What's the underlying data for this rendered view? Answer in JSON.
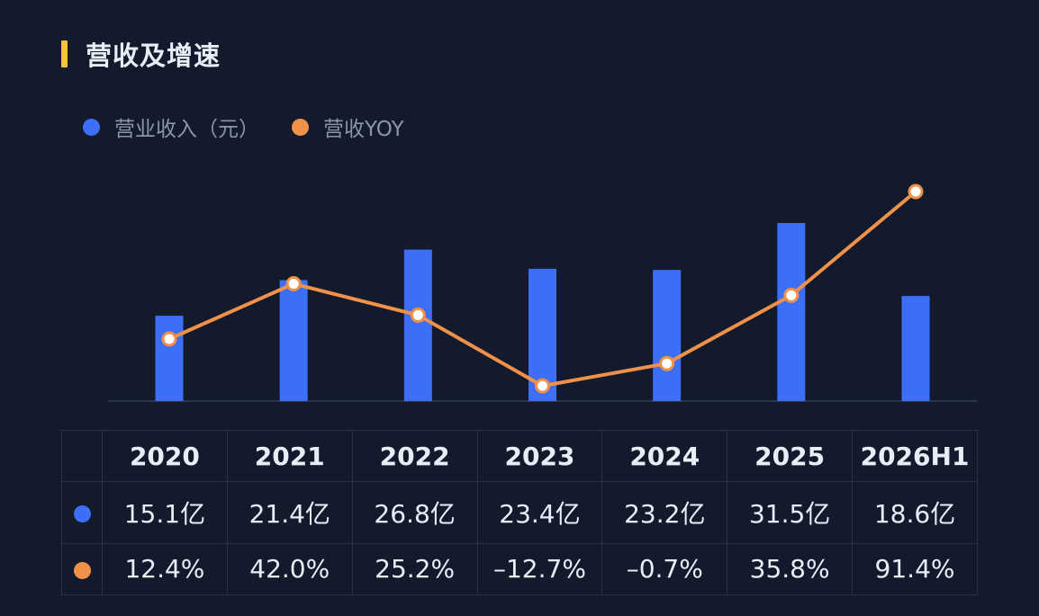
{
  "title": "营收及增速",
  "colors": {
    "revenue": "#3d6ef6",
    "yoy": "#f0914a",
    "accent": "#f6c33a"
  },
  "chart_data": {
    "type": "bar",
    "categories": [
      "2020",
      "2021",
      "2022",
      "2023",
      "2024",
      "2025",
      "2026H1"
    ],
    "series": [
      {
        "name": "营业收入（元）",
        "type": "bar",
        "values": [
          15.1,
          21.4,
          26.8,
          23.4,
          23.2,
          31.5,
          18.6
        ]
      },
      {
        "name": "营收YOY",
        "type": "line",
        "values": [
          12.4,
          42.0,
          25.2,
          -12.7,
          -0.7,
          35.8,
          91.4
        ]
      }
    ],
    "legend": "top-left",
    "grid": false
  },
  "table": {
    "years": [
      "2020",
      "2021",
      "2022",
      "2023",
      "2024",
      "2025",
      "2026H1"
    ],
    "revenue": [
      "15.1亿",
      "21.4亿",
      "26.8亿",
      "23.4亿",
      "23.2亿",
      "31.5亿",
      "18.6亿"
    ],
    "yoy": [
      "12.4%",
      "42.0%",
      "25.2%",
      "–12.7%",
      "–0.7%",
      "35.8%",
      "91.4%"
    ]
  }
}
